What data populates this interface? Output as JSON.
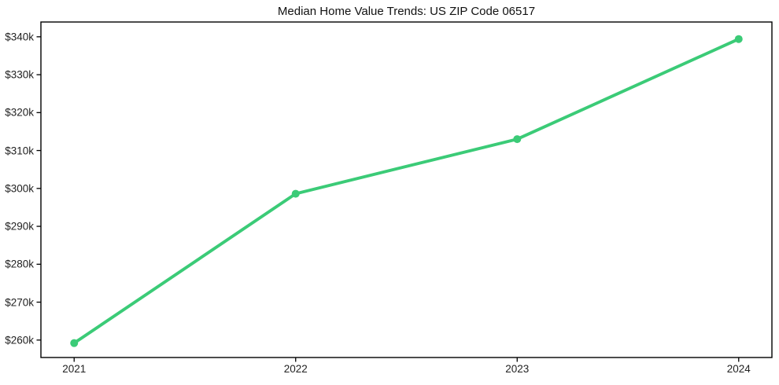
{
  "figure": {
    "background": "#ffffff"
  },
  "chart_data": {
    "type": "line",
    "title": "Median Home Value Trends: US ZIP Code 06517",
    "x": [
      2021,
      2022,
      2023,
      2024
    ],
    "values": [
      259200,
      298600,
      313000,
      339400
    ],
    "xlabel": "",
    "ylabel": "",
    "xticks": {
      "values": [
        2021,
        2022,
        2023,
        2024
      ],
      "labels": [
        "2021",
        "2022",
        "2023",
        "2024"
      ]
    },
    "yticks": {
      "values": [
        260000,
        270000,
        280000,
        290000,
        300000,
        310000,
        320000,
        330000,
        340000
      ],
      "labels": [
        "$260k",
        "$270k",
        "$280k",
        "$290k",
        "$300k",
        "$310k",
        "$320k",
        "$330k",
        "$340k"
      ]
    },
    "xlim": [
      2020.85,
      2024.15
    ],
    "ylim": [
      255400,
      343900
    ],
    "grid": false,
    "legend": false,
    "marker": "circle",
    "line_color": "#3bcb77",
    "axis_color": "#000000",
    "text_color": "#222222"
  }
}
